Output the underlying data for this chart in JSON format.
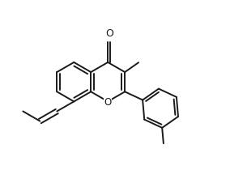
{
  "background": "#ffffff",
  "line_color": "#1a1a1a",
  "line_width": 1.4,
  "font_size": 8.5,
  "figsize": [
    2.84,
    2.32
  ],
  "dpi": 100,
  "xlim": [
    -0.05,
    1.05
  ],
  "ylim": [
    0.0,
    1.0
  ]
}
